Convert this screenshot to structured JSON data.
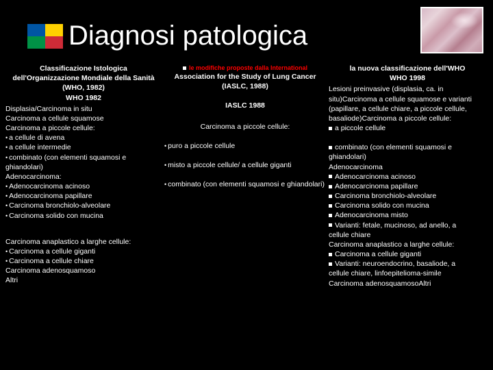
{
  "title": "Diagnosi patologica",
  "flag": {
    "colors": [
      [
        "#0055a4",
        "#ffd100"
      ],
      [
        "#009246",
        "#ce2b37"
      ]
    ]
  },
  "col1": {
    "header": "Classificazione Istologica dell'Organizzazione Mondiale della Sanità (WHO, 1982)",
    "sub": "WHO 1982",
    "lines": [
      "Displasia/Carcinoma in situ",
      "Carcinoma a cellule squamose",
      "Carcinoma a piccole cellule:"
    ],
    "sublines": [
      "a cellule di avena",
      "a cellule intermedie",
      "combinato (con elementi squamosi e ghiandolari)"
    ],
    "adeno_hdr": "Adenocarcinoma:",
    "adeno": [
      "Adenocarcinoma acinoso",
      "Adenocarcinoma papillare",
      "Carcinoma bronchiolo-alveolare",
      "Carcinoma solido con mucina"
    ],
    "anaplastic_hdr": "Carcinoma anaplastico a larghe cellule:",
    "anaplastic": [
      "Carcinoma a cellule giganti",
      "Carcinoma a cellule chiare"
    ],
    "tail": [
      "Carcinoma adenosquamoso",
      "Altri"
    ]
  },
  "col2": {
    "redline": "le modifiche proposte dalla International",
    "header": "Association for the Study of Lung Cancer (IASLC, 1988)",
    "sub": "IASLC 1988",
    "line1": "Carcinoma a piccole cellule:",
    "items": [
      "puro a piccole cellule",
      "misto a piccole cellule/ a cellule giganti",
      "combinato (con elementi squamosi e ghiandolari)"
    ]
  },
  "col3": {
    "header": "la nuova classificazione dell'WHO",
    "sub": "WHO 1998",
    "para1": "Lesioni preinvasive (displasia, ca. in situ)Carcinoma a cellule squamose e varianti (papillare, a cellule chiare, a piccole cellule, basaliode)Carcinoma a piccole cellule:",
    "b1": "a piccole cellule",
    "items": [
      "combinato (con elementi squamosi e ghiandolari)"
    ],
    "adeno_hdr": "Adenocarcinoma",
    "adeno": [
      "Adenocarcinoma acinoso",
      "Adenocarcinoma papillare",
      "Carcinoma bronchiolo-alveolare",
      "Carcinoma solido con mucina",
      "Adenocarcinoma misto",
      "Varianti: fetale, mucinoso, ad anello, a"
    ],
    "chiare": "cellule chiare",
    "anaplastic_hdr": "Carcinoma anaplastico a larghe cellule:",
    "anaplastic": [
      "Carcinoma a cellule giganti",
      "Varianti: neuroendocrino, basaliode, a"
    ],
    "tail_inline": "cellule chiare, linfoepitelioma-simile",
    "tail": [
      "Carcinoma adenosquamosoAltri"
    ]
  }
}
